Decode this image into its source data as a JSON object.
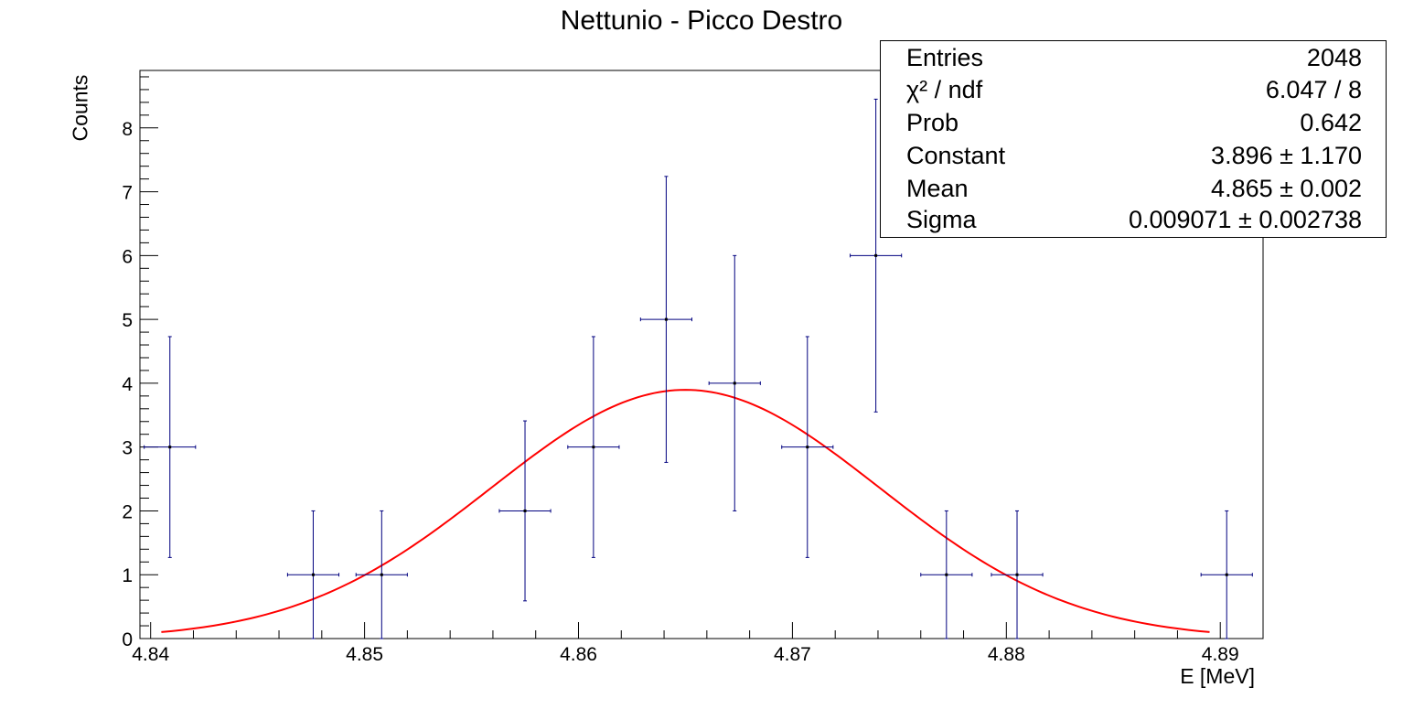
{
  "chart_data": {
    "type": "scatter",
    "title": "Nettunio - Picco Destro",
    "xlabel": "E [MeV]",
    "ylabel": "Counts",
    "xlim": [
      4.8395,
      4.892
    ],
    "ylim": [
      0,
      8.9
    ],
    "x_ticks": [
      "4.84",
      "4.85",
      "4.86",
      "4.87",
      "4.88",
      "4.89"
    ],
    "y_ticks": [
      "0",
      "1",
      "2",
      "3",
      "4",
      "5",
      "6",
      "7",
      "8"
    ],
    "grid": false,
    "points": [
      {
        "x": 4.8409,
        "y": 3,
        "xerr": 0.0012,
        "yerr": 1.73
      },
      {
        "x": 4.8476,
        "y": 1,
        "xerr": 0.0012,
        "yerr": 1.0
      },
      {
        "x": 4.8508,
        "y": 1,
        "xerr": 0.0012,
        "yerr": 1.0
      },
      {
        "x": 4.8575,
        "y": 2,
        "xerr": 0.0012,
        "yerr": 1.41
      },
      {
        "x": 4.8607,
        "y": 3,
        "xerr": 0.0012,
        "yerr": 1.73
      },
      {
        "x": 4.8641,
        "y": 5,
        "xerr": 0.0012,
        "yerr": 2.24
      },
      {
        "x": 4.8673,
        "y": 4,
        "xerr": 0.0012,
        "yerr": 2.0
      },
      {
        "x": 4.8707,
        "y": 3,
        "xerr": 0.0012,
        "yerr": 1.73
      },
      {
        "x": 4.8739,
        "y": 6,
        "xerr": 0.0012,
        "yerr": 2.45
      },
      {
        "x": 4.8772,
        "y": 1,
        "xerr": 0.0012,
        "yerr": 1.0
      },
      {
        "x": 4.8805,
        "y": 1,
        "xerr": 0.0012,
        "yerr": 1.0
      },
      {
        "x": 4.8903,
        "y": 1,
        "xerr": 0.0012,
        "yerr": 1.0
      }
    ],
    "fit": {
      "function": "gaus",
      "constant": 3.896,
      "mean": 4.865,
      "sigma": 0.009071,
      "x_range": [
        4.8405,
        4.8895
      ]
    },
    "colors": {
      "points": "#00007f",
      "fit": "#ff0000",
      "axes": "#000000"
    }
  },
  "stats": {
    "rows": [
      {
        "key": "Entries",
        "value": "2048"
      },
      {
        "key": "χ² / ndf",
        "value": "6.047 / 8"
      },
      {
        "key": "Prob",
        "value": "0.642"
      },
      {
        "key": "Constant",
        "value": "3.896 ± 1.170"
      },
      {
        "key": "Mean",
        "value": "4.865 ± 0.002"
      },
      {
        "key": "Sigma",
        "value": "0.009071 ± 0.002738"
      }
    ]
  }
}
